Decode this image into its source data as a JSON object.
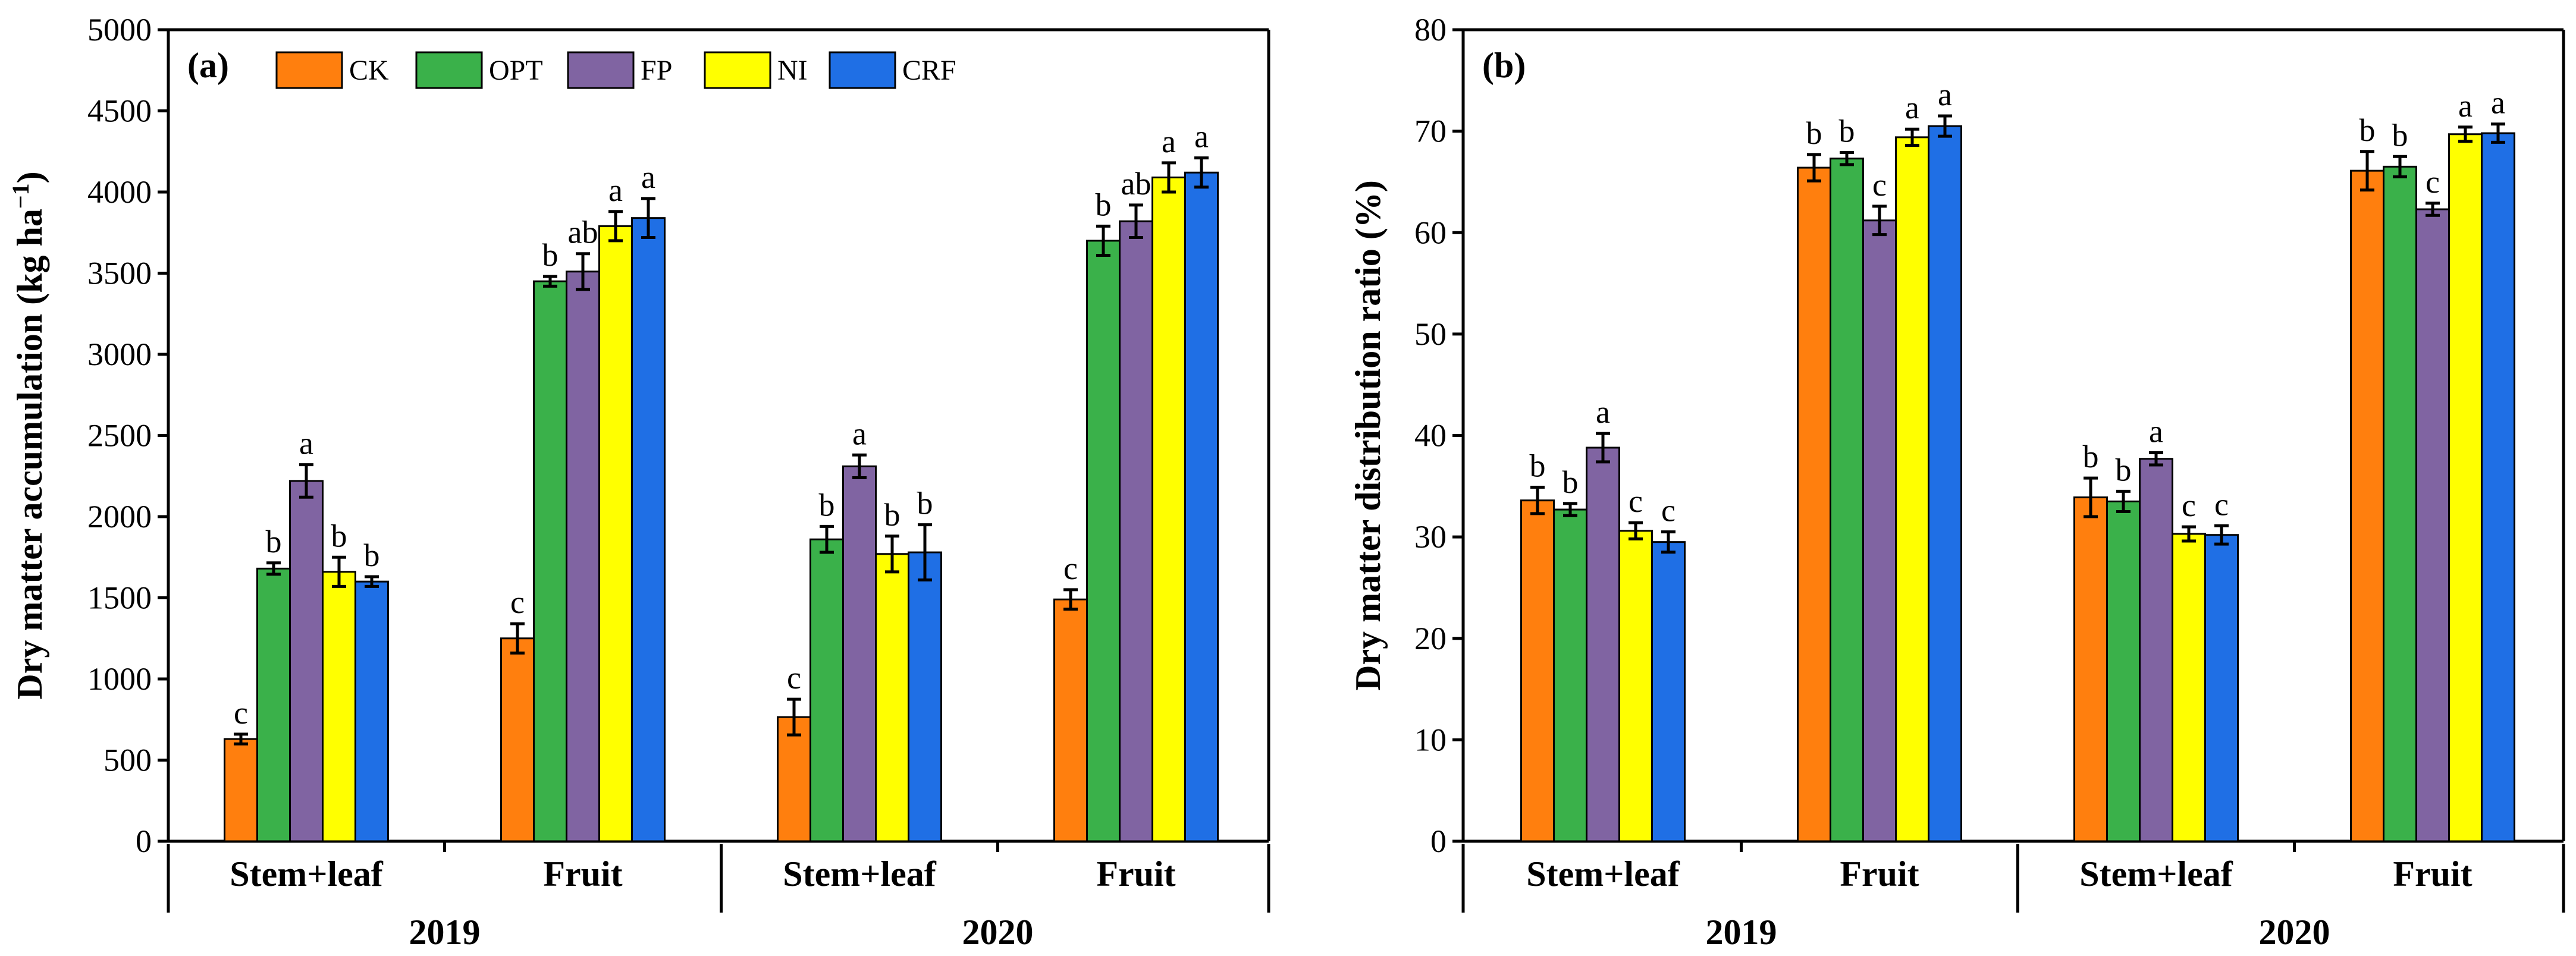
{
  "chart_data": [
    {
      "type": "bar",
      "panel_label": "(a)",
      "ylabel_main": "Dry matter accumulation (kg ha",
      "ylabel_sup": "−1",
      "ylabel_end": ")",
      "ylim": [
        0,
        5000
      ],
      "yticks": [
        0,
        500,
        1000,
        1500,
        2000,
        2500,
        3000,
        3500,
        4000,
        4500,
        5000
      ],
      "categories": [
        "Stem+leaf",
        "Fruit",
        "Stem+leaf",
        "Fruit"
      ],
      "years": [
        "2019",
        "2020"
      ],
      "series": [
        {
          "name": "CK",
          "color": "#ff7f0e",
          "values": [
            630,
            1250,
            765,
            1490
          ],
          "errors": [
            30,
            90,
            110,
            60
          ],
          "letters": [
            "c",
            "c",
            "c",
            "c"
          ]
        },
        {
          "name": "OPT",
          "color": "#3ab14a",
          "values": [
            1680,
            3450,
            1860,
            3700
          ],
          "errors": [
            35,
            30,
            80,
            90
          ],
          "letters": [
            "b",
            "b",
            "b",
            "b"
          ]
        },
        {
          "name": "FP",
          "color": "#8064a2",
          "values": [
            2220,
            3510,
            2310,
            3820
          ],
          "errors": [
            100,
            110,
            70,
            100
          ],
          "letters": [
            "a",
            "ab",
            "a",
            "ab"
          ]
        },
        {
          "name": "NI",
          "color": "#ffff00",
          "values": [
            1660,
            3790,
            1770,
            4090
          ],
          "errors": [
            90,
            90,
            110,
            90
          ],
          "letters": [
            "b",
            "a",
            "b",
            "a"
          ]
        },
        {
          "name": "CRF",
          "color": "#1f6fe5",
          "values": [
            1600,
            3840,
            1780,
            4120
          ],
          "errors": [
            30,
            120,
            170,
            90
          ],
          "letters": [
            "b",
            "a",
            "b",
            "a"
          ]
        }
      ]
    },
    {
      "type": "bar",
      "panel_label": "(b)",
      "ylabel_main": "Dry matter distribution ratio  (%)",
      "ylim": [
        0,
        80
      ],
      "yticks": [
        0,
        10,
        20,
        30,
        40,
        50,
        60,
        70,
        80
      ],
      "categories": [
        "Stem+leaf",
        "Fruit",
        "Stem+leaf",
        "Fruit"
      ],
      "years": [
        "2019",
        "2020"
      ],
      "series": [
        {
          "name": "CK",
          "color": "#ff7f0e",
          "values": [
            33.6,
            66.4,
            33.9,
            66.1
          ],
          "errors": [
            1.3,
            1.3,
            1.9,
            1.9
          ],
          "letters": [
            "b",
            "b",
            "b",
            "b"
          ]
        },
        {
          "name": "OPT",
          "color": "#3ab14a",
          "values": [
            32.7,
            67.3,
            33.5,
            66.5
          ],
          "errors": [
            0.6,
            0.6,
            1.0,
            1.0
          ],
          "letters": [
            "b",
            "b",
            "b",
            "b"
          ]
        },
        {
          "name": "FP",
          "color": "#8064a2",
          "values": [
            38.8,
            61.2,
            37.7,
            62.3
          ],
          "errors": [
            1.4,
            1.4,
            0.6,
            0.6
          ],
          "letters": [
            "a",
            "c",
            "a",
            "c"
          ]
        },
        {
          "name": "NI",
          "color": "#ffff00",
          "values": [
            30.6,
            69.4,
            30.3,
            69.7
          ],
          "errors": [
            0.8,
            0.8,
            0.7,
            0.7
          ],
          "letters": [
            "c",
            "a",
            "c",
            "a"
          ]
        },
        {
          "name": "CRF",
          "color": "#1f6fe5",
          "values": [
            29.5,
            70.5,
            30.2,
            69.8
          ],
          "errors": [
            1.0,
            1.0,
            0.9,
            0.9
          ],
          "letters": [
            "c",
            "a",
            "c",
            "a"
          ]
        }
      ]
    }
  ]
}
